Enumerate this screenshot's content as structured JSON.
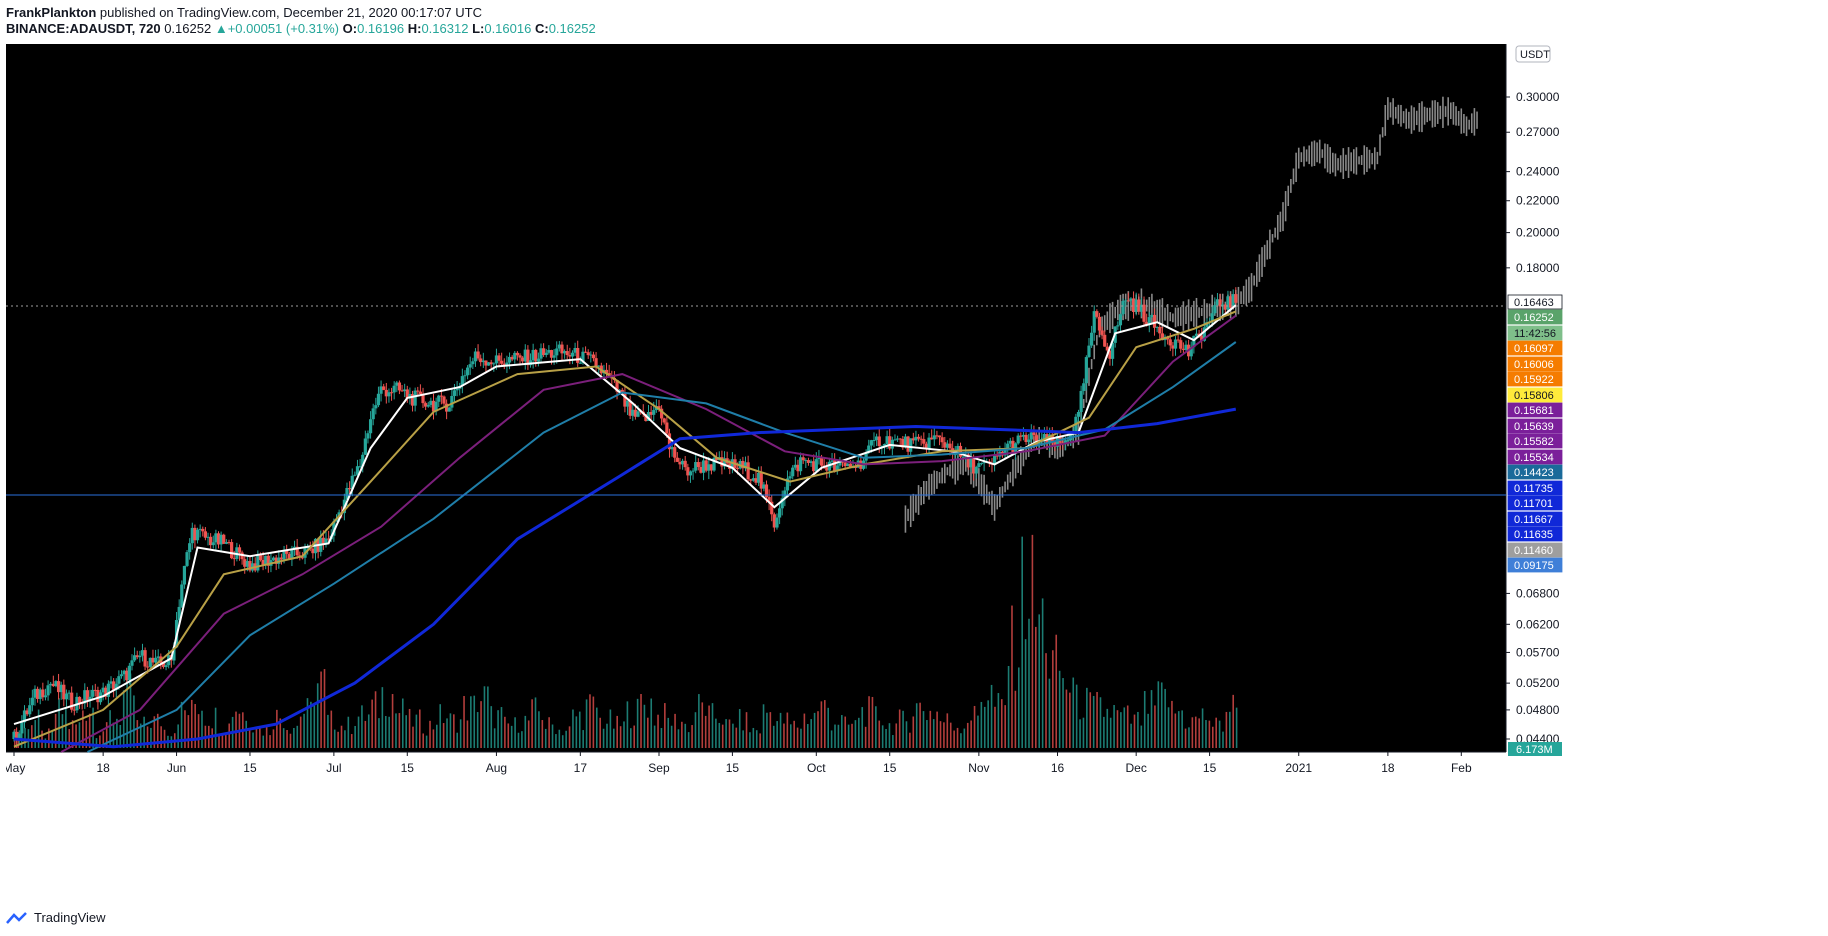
{
  "header": {
    "author": "FrankPlankton",
    "published": "published on TradingView.com, December 21, 2020 00:17:07 UTC",
    "symbol": "BINANCE:ADAUSDT, 720",
    "last": "0.16252",
    "change": "+0.00051 (+0.31%)",
    "o_label": "O:",
    "o": "0.16196",
    "h_label": "H:",
    "h": "0.16312",
    "l_label": "L:",
    "l": "0.16016",
    "c_label": "C:",
    "c": "0.16252"
  },
  "footer": {
    "brand": "TradingView"
  },
  "colors": {
    "background": "#000000",
    "up": "#26a69a",
    "down": "#ef5350",
    "ghost": "#8a8a8a",
    "ma_white": "#ffffff",
    "ma_gold": "#b8a046",
    "ma_purple": "#7b1f7b",
    "ma_steel": "#1f7ea8",
    "ma_blue": "#1028d8",
    "hline": "#2a6fdb"
  },
  "chart_data": {
    "type": "candlestick",
    "interval": "720",
    "currency_label": "USDT",
    "y_scale": "log",
    "y_ticks": [
      "0.30000",
      "0.27000",
      "0.24000",
      "0.22000",
      "0.20000",
      "0.18000",
      "0.06800",
      "0.06200",
      "0.05700",
      "0.05200",
      "0.04800",
      "0.04400"
    ],
    "x_ticks": [
      {
        "label": "May",
        "date": "2020-05-01"
      },
      {
        "label": "18",
        "date": "2020-05-18"
      },
      {
        "label": "Jun",
        "date": "2020-06-01"
      },
      {
        "label": "15",
        "date": "2020-06-15"
      },
      {
        "label": "Jul",
        "date": "2020-07-01"
      },
      {
        "label": "15",
        "date": "2020-07-15"
      },
      {
        "label": "Aug",
        "date": "2020-08-01"
      },
      {
        "label": "17",
        "date": "2020-08-17"
      },
      {
        "label": "Sep",
        "date": "2020-09-01"
      },
      {
        "label": "15",
        "date": "2020-09-15"
      },
      {
        "label": "Oct",
        "date": "2020-10-01"
      },
      {
        "label": "15",
        "date": "2020-10-15"
      },
      {
        "label": "Nov",
        "date": "2020-11-01"
      },
      {
        "label": "16",
        "date": "2020-11-16"
      },
      {
        "label": "Dec",
        "date": "2020-12-01"
      },
      {
        "label": "15",
        "date": "2020-12-15"
      },
      {
        "label": "2021",
        "date": "2021-01-01"
      },
      {
        "label": "18",
        "date": "2021-01-18"
      },
      {
        "label": "Feb",
        "date": "2021-02-01"
      }
    ],
    "price_path": [
      [
        "2020-05-01",
        0.044
      ],
      [
        "2020-05-05",
        0.05
      ],
      [
        "2020-05-08",
        0.052
      ],
      [
        "2020-05-12",
        0.049
      ],
      [
        "2020-05-15",
        0.05
      ],
      [
        "2020-05-18",
        0.0505
      ],
      [
        "2020-05-22",
        0.053
      ],
      [
        "2020-05-25",
        0.0565
      ],
      [
        "2020-05-28",
        0.055
      ],
      [
        "2020-05-31",
        0.0555
      ],
      [
        "2020-06-02",
        0.07
      ],
      [
        "2020-06-04",
        0.082
      ],
      [
        "2020-06-07",
        0.08
      ],
      [
        "2020-06-10",
        0.079
      ],
      [
        "2020-06-13",
        0.076
      ],
      [
        "2020-06-15",
        0.074
      ],
      [
        "2020-06-18",
        0.075
      ],
      [
        "2020-06-22",
        0.076
      ],
      [
        "2020-06-26",
        0.077
      ],
      [
        "2020-06-30",
        0.08
      ],
      [
        "2020-07-03",
        0.09
      ],
      [
        "2020-07-06",
        0.1
      ],
      [
        "2020-07-08",
        0.115
      ],
      [
        "2020-07-10",
        0.125
      ],
      [
        "2020-07-13",
        0.125
      ],
      [
        "2020-07-16",
        0.122
      ],
      [
        "2020-07-20",
        0.12
      ],
      [
        "2020-07-23",
        0.12
      ],
      [
        "2020-07-26",
        0.132
      ],
      [
        "2020-07-28",
        0.138
      ],
      [
        "2020-08-01",
        0.136
      ],
      [
        "2020-08-05",
        0.137
      ],
      [
        "2020-08-10",
        0.139
      ],
      [
        "2020-08-13",
        0.14
      ],
      [
        "2020-08-17",
        0.138
      ],
      [
        "2020-08-20",
        0.135
      ],
      [
        "2020-08-24",
        0.125
      ],
      [
        "2020-08-27",
        0.115
      ],
      [
        "2020-08-30",
        0.115
      ],
      [
        "2020-09-01",
        0.12
      ],
      [
        "2020-09-03",
        0.105
      ],
      [
        "2020-09-06",
        0.098
      ],
      [
        "2020-09-10",
        0.1
      ],
      [
        "2020-09-13",
        0.1
      ],
      [
        "2020-09-17",
        0.099
      ],
      [
        "2020-09-20",
        0.096
      ],
      [
        "2020-09-23",
        0.084
      ],
      [
        "2020-09-25",
        0.094
      ],
      [
        "2020-09-28",
        0.101
      ],
      [
        "2020-10-02",
        0.1
      ],
      [
        "2020-10-05",
        0.099
      ],
      [
        "2020-10-09",
        0.1
      ],
      [
        "2020-10-13",
        0.108
      ],
      [
        "2020-10-16",
        0.107
      ],
      [
        "2020-10-20",
        0.106
      ],
      [
        "2020-10-24",
        0.108
      ],
      [
        "2020-10-27",
        0.105
      ],
      [
        "2020-10-30",
        0.1
      ],
      [
        "2020-11-03",
        0.099
      ],
      [
        "2020-11-06",
        0.105
      ],
      [
        "2020-11-10",
        0.108
      ],
      [
        "2020-11-14",
        0.107
      ],
      [
        "2020-11-17",
        0.106
      ],
      [
        "2020-11-20",
        0.115
      ],
      [
        "2020-11-23",
        0.155
      ],
      [
        "2020-11-26",
        0.14
      ],
      [
        "2020-11-29",
        0.165
      ],
      [
        "2020-12-02",
        0.158
      ],
      [
        "2020-12-05",
        0.15
      ],
      [
        "2020-12-08",
        0.145
      ],
      [
        "2020-12-11",
        0.14
      ],
      [
        "2020-12-14",
        0.15
      ],
      [
        "2020-12-17",
        0.162
      ],
      [
        "2020-12-20",
        0.1625
      ]
    ],
    "ghost_path": [
      [
        "2020-10-18",
        0.085
      ],
      [
        "2020-10-22",
        0.093
      ],
      [
        "2020-10-26",
        0.098
      ],
      [
        "2020-10-30",
        0.1
      ],
      [
        "2020-11-04",
        0.088
      ],
      [
        "2020-11-08",
        0.099
      ],
      [
        "2020-11-12",
        0.108
      ],
      [
        "2020-11-16",
        0.104
      ],
      [
        "2020-11-20",
        0.11
      ],
      [
        "2020-11-24",
        0.15
      ],
      [
        "2020-11-28",
        0.16
      ],
      [
        "2020-12-02",
        0.162
      ],
      [
        "2020-12-08",
        0.155
      ],
      [
        "2020-12-14",
        0.158
      ],
      [
        "2020-12-20",
        0.162
      ],
      [
        "2020-12-23",
        0.17
      ],
      [
        "2020-12-26",
        0.19
      ],
      [
        "2020-12-29",
        0.21
      ],
      [
        "2021-01-01",
        0.25
      ],
      [
        "2021-01-05",
        0.255
      ],
      [
        "2021-01-08",
        0.245
      ],
      [
        "2021-01-12",
        0.248
      ],
      [
        "2021-01-16",
        0.25
      ],
      [
        "2021-01-18",
        0.29
      ],
      [
        "2021-01-22",
        0.28
      ],
      [
        "2021-01-26",
        0.285
      ],
      [
        "2021-01-30",
        0.288
      ],
      [
        "2021-02-02",
        0.275
      ],
      [
        "2021-02-04",
        0.28
      ]
    ],
    "ma_series": [
      {
        "key": "ma_white",
        "width": 2,
        "points": [
          [
            "2020-05-01",
            0.046
          ],
          [
            "2020-05-18",
            0.05
          ],
          [
            "2020-05-31",
            0.056
          ],
          [
            "2020-06-05",
            0.078
          ],
          [
            "2020-06-15",
            0.076
          ],
          [
            "2020-06-30",
            0.079
          ],
          [
            "2020-07-08",
            0.105
          ],
          [
            "2020-07-15",
            0.122
          ],
          [
            "2020-07-25",
            0.126
          ],
          [
            "2020-08-01",
            0.134
          ],
          [
            "2020-08-17",
            0.137
          ],
          [
            "2020-08-27",
            0.12
          ],
          [
            "2020-09-05",
            0.105
          ],
          [
            "2020-09-15",
            0.099
          ],
          [
            "2020-09-23",
            0.088
          ],
          [
            "2020-10-02",
            0.099
          ],
          [
            "2020-10-15",
            0.106
          ],
          [
            "2020-10-27",
            0.104
          ],
          [
            "2020-11-04",
            0.1
          ],
          [
            "2020-11-12",
            0.107
          ],
          [
            "2020-11-20",
            0.11
          ],
          [
            "2020-11-27",
            0.148
          ],
          [
            "2020-12-05",
            0.153
          ],
          [
            "2020-12-12",
            0.145
          ],
          [
            "2020-12-20",
            0.161
          ]
        ]
      },
      {
        "key": "ma_gold",
        "width": 2,
        "points": [
          [
            "2020-05-01",
            0.043
          ],
          [
            "2020-05-18",
            0.048
          ],
          [
            "2020-06-01",
            0.058
          ],
          [
            "2020-06-10",
            0.072
          ],
          [
            "2020-06-25",
            0.076
          ],
          [
            "2020-07-08",
            0.095
          ],
          [
            "2020-07-20",
            0.117
          ],
          [
            "2020-08-05",
            0.131
          ],
          [
            "2020-08-20",
            0.134
          ],
          [
            "2020-09-01",
            0.118
          ],
          [
            "2020-09-12",
            0.102
          ],
          [
            "2020-09-26",
            0.095
          ],
          [
            "2020-10-10",
            0.1
          ],
          [
            "2020-10-25",
            0.104
          ],
          [
            "2020-11-10",
            0.105
          ],
          [
            "2020-11-22",
            0.115
          ],
          [
            "2020-12-01",
            0.142
          ],
          [
            "2020-12-12",
            0.15
          ],
          [
            "2020-12-20",
            0.158
          ]
        ]
      },
      {
        "key": "ma_purple",
        "width": 2,
        "points": [
          [
            "2020-05-10",
            0.042
          ],
          [
            "2020-05-25",
            0.048
          ],
          [
            "2020-06-10",
            0.064
          ],
          [
            "2020-06-25",
            0.072
          ],
          [
            "2020-07-10",
            0.083
          ],
          [
            "2020-07-25",
            0.102
          ],
          [
            "2020-08-10",
            0.125
          ],
          [
            "2020-08-25",
            0.131
          ],
          [
            "2020-09-10",
            0.118
          ],
          [
            "2020-09-25",
            0.104
          ],
          [
            "2020-10-10",
            0.1
          ],
          [
            "2020-10-25",
            0.101
          ],
          [
            "2020-11-10",
            0.104
          ],
          [
            "2020-11-25",
            0.109
          ],
          [
            "2020-12-08",
            0.136
          ],
          [
            "2020-12-20",
            0.156
          ]
        ]
      },
      {
        "key": "ma_steel",
        "width": 2,
        "points": [
          [
            "2020-05-15",
            0.042
          ],
          [
            "2020-06-01",
            0.048
          ],
          [
            "2020-06-15",
            0.06
          ],
          [
            "2020-07-01",
            0.07
          ],
          [
            "2020-07-20",
            0.085
          ],
          [
            "2020-08-10",
            0.11
          ],
          [
            "2020-08-25",
            0.124
          ],
          [
            "2020-09-10",
            0.12
          ],
          [
            "2020-09-25",
            0.11
          ],
          [
            "2020-10-10",
            0.102
          ],
          [
            "2020-10-25",
            0.103
          ],
          [
            "2020-11-10",
            0.105
          ],
          [
            "2020-11-25",
            0.111
          ],
          [
            "2020-12-08",
            0.126
          ],
          [
            "2020-12-20",
            0.1442
          ]
        ]
      },
      {
        "key": "ma_blue",
        "width": 3,
        "points": [
          [
            "2020-05-01",
            0.044
          ],
          [
            "2020-05-20",
            0.043
          ],
          [
            "2020-06-05",
            0.044
          ],
          [
            "2020-06-20",
            0.046
          ],
          [
            "2020-07-05",
            0.052
          ],
          [
            "2020-07-20",
            0.062
          ],
          [
            "2020-08-05",
            0.08
          ],
          [
            "2020-08-25",
            0.097
          ],
          [
            "2020-09-05",
            0.108
          ],
          [
            "2020-09-20",
            0.11
          ],
          [
            "2020-10-05",
            0.111
          ],
          [
            "2020-10-20",
            0.112
          ],
          [
            "2020-11-05",
            0.111
          ],
          [
            "2020-11-20",
            0.11
          ],
          [
            "2020-12-05",
            0.113
          ],
          [
            "2020-12-20",
            0.118
          ]
        ]
      }
    ],
    "volume_profile": [
      4,
      6,
      3,
      8,
      5,
      9,
      4,
      7,
      12,
      5,
      6,
      4,
      8,
      10,
      7,
      5,
      9,
      6,
      4,
      7,
      5,
      8,
      14,
      6,
      5,
      7,
      9,
      12,
      8,
      6,
      5,
      7,
      6,
      9,
      11,
      7,
      5,
      6,
      8,
      5,
      4,
      7,
      9,
      6,
      5,
      8,
      10,
      7,
      6,
      5,
      9,
      7,
      5,
      6,
      4,
      8,
      6,
      5,
      7,
      9,
      6,
      5,
      8,
      7,
      5,
      6,
      9,
      8,
      6,
      5,
      7,
      12,
      9,
      22,
      35,
      28,
      18,
      14,
      10,
      9,
      8,
      7,
      6,
      9,
      11,
      8,
      6,
      7,
      5,
      9
    ],
    "price_labels": [
      {
        "value": "0.16463",
        "bg": "#ffffff",
        "fg": "#131722"
      },
      {
        "value": "0.16252",
        "bg": "#5aa36a",
        "fg": "#ffffff"
      },
      {
        "value": "11:42:56",
        "bg": "#7fbf8a",
        "fg": "#131722"
      },
      {
        "value": "0.16097",
        "bg": "#f57c00",
        "fg": "#ffffff"
      },
      {
        "value": "0.16006",
        "bg": "#f57c00",
        "fg": "#ffffff"
      },
      {
        "value": "0.15922",
        "bg": "#f57c00",
        "fg": "#ffffff"
      },
      {
        "value": "0.15806",
        "bg": "#ffeb3b",
        "fg": "#131722"
      },
      {
        "value": "0.15681",
        "bg": "#7b1f9a",
        "fg": "#ffffff"
      },
      {
        "value": "0.15639",
        "bg": "#7b1f9a",
        "fg": "#ffffff"
      },
      {
        "value": "0.15582",
        "bg": "#7b1f9a",
        "fg": "#ffffff"
      },
      {
        "value": "0.15534",
        "bg": "#7b1f9a",
        "fg": "#ffffff"
      },
      {
        "value": "0.14423",
        "bg": "#1a6a9a",
        "fg": "#ffffff"
      },
      {
        "value": "0.11735",
        "bg": "#1028d8",
        "fg": "#ffffff"
      },
      {
        "value": "0.11701",
        "bg": "#1028d8",
        "fg": "#ffffff"
      },
      {
        "value": "0.11667",
        "bg": "#1028d8",
        "fg": "#ffffff"
      },
      {
        "value": "0.11635",
        "bg": "#1028d8",
        "fg": "#ffffff"
      },
      {
        "value": "0.11460",
        "bg": "#9e9e9e",
        "fg": "#ffffff"
      },
      {
        "value": "0.09175",
        "bg": "#3f7fd8",
        "fg": "#ffffff"
      }
    ],
    "volume_label": "6.173M"
  }
}
